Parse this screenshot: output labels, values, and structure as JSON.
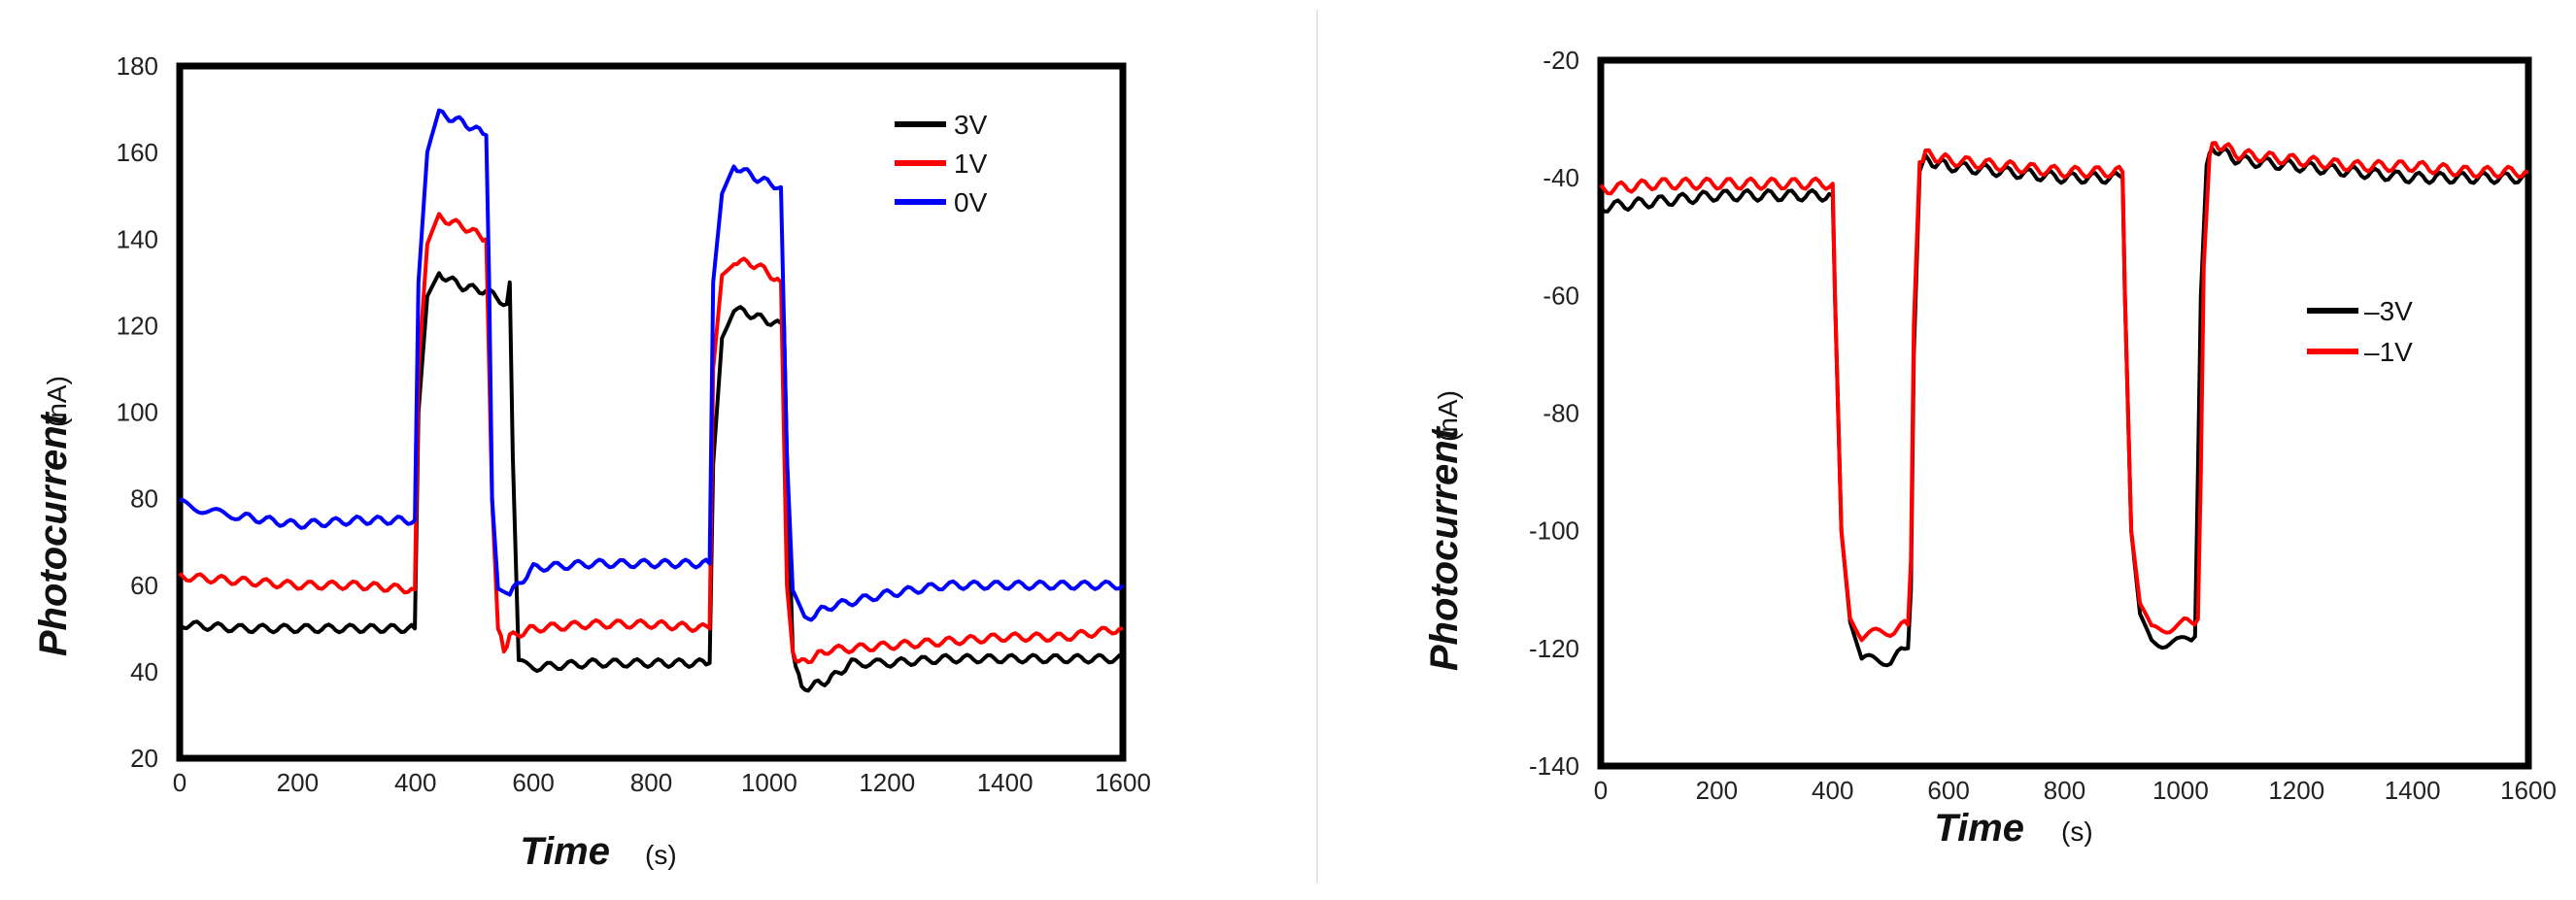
{
  "chart_data": [
    {
      "type": "line",
      "title": "",
      "xlabel": "Time",
      "xlabel_unit": "(s)",
      "ylabel": "Photocurrent",
      "ylabel_unit": "(nA)",
      "xlim": [
        0,
        1600
      ],
      "ylim": [
        20,
        180
      ],
      "xticks": [
        0,
        200,
        400,
        600,
        800,
        1000,
        1200,
        1400,
        1600
      ],
      "yticks": [
        20,
        40,
        60,
        80,
        100,
        120,
        140,
        160,
        180
      ],
      "legend_position": "top-right",
      "series": [
        {
          "name": "3V",
          "color": "#000000",
          "x": [
            0,
            100,
            200,
            300,
            399,
            405,
            420,
            440,
            480,
            520,
            555,
            560,
            565,
            575,
            600,
            700,
            800,
            899,
            905,
            920,
            940,
            980,
            1020,
            1025,
            1030,
            1040,
            1055,
            1100,
            1140,
            1200,
            1300,
            1400,
            1500,
            1600
          ],
          "y": [
            51,
            50,
            50,
            50,
            50,
            100,
            126,
            132,
            129,
            128,
            125,
            130,
            90,
            42,
            41,
            42,
            42,
            42,
            88,
            118,
            124,
            122,
            120,
            121,
            90,
            45,
            36,
            38,
            42,
            42,
            43,
            43,
            43,
            43
          ]
        },
        {
          "name": "1V",
          "color": "#ff0000",
          "x": [
            0,
            100,
            200,
            300,
            399,
            405,
            420,
            440,
            480,
            520,
            530,
            540,
            550,
            560,
            600,
            700,
            800,
            899,
            905,
            920,
            940,
            980,
            1020,
            1030,
            1040,
            1055,
            1100,
            1200,
            1300,
            1400,
            1500,
            1600
          ],
          "y": [
            62,
            61,
            60,
            60,
            59,
            110,
            138,
            145,
            143,
            140,
            80,
            50,
            45,
            48,
            50,
            51,
            51,
            50,
            110,
            132,
            135,
            134,
            130,
            60,
            44,
            42,
            45,
            46,
            47,
            48,
            48,
            50
          ]
        },
        {
          "name": "0V",
          "color": "#0000ff",
          "x": [
            0,
            50,
            100,
            200,
            300,
            399,
            405,
            420,
            440,
            480,
            520,
            525,
            530,
            540,
            560,
            600,
            700,
            800,
            899,
            905,
            920,
            940,
            980,
            1020,
            1030,
            1040,
            1060,
            1100,
            1200,
            1300,
            1400,
            1500,
            1600
          ],
          "y": [
            79,
            77,
            76,
            74,
            75,
            75,
            130,
            160,
            169,
            167,
            164,
            130,
            80,
            60,
            58,
            64,
            65,
            65,
            65,
            130,
            150,
            157,
            154,
            152,
            90,
            58,
            52,
            55,
            58,
            60,
            60,
            60,
            60
          ]
        }
      ]
    },
    {
      "type": "line",
      "title": "",
      "xlabel": "Time",
      "xlabel_unit": "(s)",
      "ylabel": "Photocurrent",
      "ylabel_unit": "(nA)",
      "xlim": [
        0,
        1600
      ],
      "ylim": [
        -140,
        -20
      ],
      "xticks": [
        0,
        200,
        400,
        600,
        800,
        1000,
        1200,
        1400,
        1600
      ],
      "yticks": [
        -20,
        -40,
        -60,
        -80,
        -100,
        -120,
        -140
      ],
      "legend_position": "center-right",
      "series": [
        {
          "name": "–3V",
          "color": "#000000",
          "x": [
            0,
            100,
            200,
            300,
            400,
            404,
            415,
            430,
            450,
            500,
            530,
            535,
            540,
            550,
            560,
            600,
            700,
            800,
            900,
            904,
            915,
            930,
            950,
            1000,
            1025,
            1030,
            1035,
            1045,
            1060,
            1100,
            1200,
            1300,
            1400,
            1500,
            1600
          ],
          "y": [
            -45,
            -44,
            -43,
            -43,
            -43,
            -60,
            -100,
            -115,
            -122,
            -122,
            -120,
            -110,
            -70,
            -38,
            -37,
            -38,
            -39,
            -40,
            -40,
            -60,
            -100,
            -115,
            -119,
            -119,
            -118,
            -90,
            -60,
            -37,
            -35,
            -37,
            -38,
            -39,
            -40,
            -40,
            -40
          ]
        },
        {
          "name": "–1V",
          "color": "#ff0000",
          "x": [
            0,
            100,
            200,
            300,
            400,
            404,
            415,
            430,
            450,
            500,
            530,
            535,
            540,
            550,
            560,
            600,
            700,
            800,
            900,
            904,
            915,
            930,
            950,
            1000,
            1030,
            1035,
            1040,
            1050,
            1060,
            1100,
            1200,
            1300,
            1400,
            1500,
            1600
          ],
          "y": [
            -42,
            -41,
            -41,
            -41,
            -41,
            -60,
            -100,
            -114,
            -118,
            -117,
            -116,
            -105,
            -65,
            -37,
            -36,
            -37,
            -38,
            -39,
            -39,
            -60,
            -100,
            -113,
            -117,
            -116,
            -115,
            -90,
            -55,
            -36,
            -34,
            -36,
            -37,
            -38,
            -38,
            -39,
            -39
          ]
        }
      ]
    }
  ]
}
